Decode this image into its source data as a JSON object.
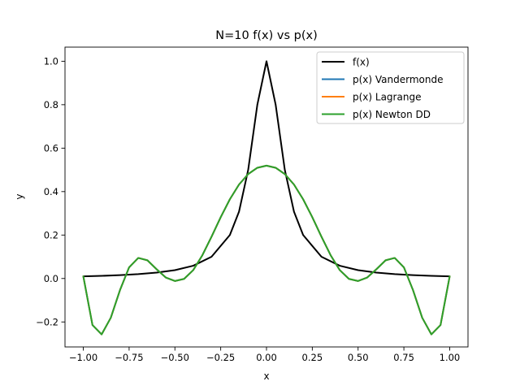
{
  "chart_data": {
    "type": "line",
    "title": "N=10 f(x) vs p(x)",
    "xlabel": "x",
    "ylabel": "y",
    "xlim": [
      -1.1,
      1.1
    ],
    "ylim": [
      -0.315,
      1.065
    ],
    "xticks": [
      -1.0,
      -0.75,
      -0.5,
      -0.25,
      0.0,
      0.25,
      0.5,
      0.75,
      1.0
    ],
    "xtick_labels": [
      "−1.00",
      "−0.75",
      "−0.50",
      "−0.25",
      "0.00",
      "0.25",
      "0.50",
      "0.75",
      "1.00"
    ],
    "yticks": [
      -0.2,
      0.0,
      0.2,
      0.4,
      0.6,
      0.8,
      1.0
    ],
    "ytick_labels": [
      "−0.2",
      "0.0",
      "0.2",
      "0.4",
      "0.6",
      "0.8",
      "1.0"
    ],
    "grid": false,
    "legend_position": "upper right",
    "series": [
      {
        "name": "f(x)",
        "color": "#000000",
        "x": [
          -1.0,
          -0.9,
          -0.8,
          -0.7,
          -0.6,
          -0.5,
          -0.4,
          -0.3,
          -0.2,
          -0.15,
          -0.1,
          -0.05,
          0.0,
          0.05,
          0.1,
          0.15,
          0.2,
          0.3,
          0.4,
          0.5,
          0.6,
          0.7,
          0.8,
          0.9,
          1.0
        ],
        "y": [
          0.0099,
          0.0122,
          0.0154,
          0.02,
          0.027,
          0.0385,
          0.0588,
          0.1,
          0.2,
          0.3077,
          0.5,
          0.8,
          1.0,
          0.8,
          0.5,
          0.3077,
          0.2,
          0.1,
          0.0588,
          0.0385,
          0.027,
          0.02,
          0.0154,
          0.0122,
          0.0099
        ]
      },
      {
        "name": "p(x) Vandermonde",
        "color": "#1f77b4",
        "x": [
          -1.0,
          -0.95,
          -0.9,
          -0.85,
          -0.8,
          -0.75,
          -0.7,
          -0.65,
          -0.6,
          -0.55,
          -0.5,
          -0.45,
          -0.4,
          -0.35,
          -0.3,
          -0.25,
          -0.2,
          -0.15,
          -0.1,
          -0.05,
          0.0,
          0.05,
          0.1,
          0.15,
          0.2,
          0.25,
          0.3,
          0.35,
          0.4,
          0.45,
          0.5,
          0.55,
          0.6,
          0.65,
          0.7,
          0.75,
          0.8,
          0.85,
          0.9,
          0.95,
          1.0
        ],
        "y": [
          0.0099,
          -0.2142,
          -0.2572,
          -0.1806,
          -0.0538,
          0.0513,
          0.0947,
          0.0837,
          0.0427,
          0.0046,
          -0.0115,
          -0.0017,
          0.0386,
          0.1072,
          0.1926,
          0.2822,
          0.3647,
          0.4324,
          0.4807,
          0.5097,
          0.5195,
          0.5097,
          0.4807,
          0.4324,
          0.3647,
          0.2822,
          0.1926,
          0.1072,
          0.0386,
          -0.0017,
          -0.0115,
          0.0046,
          0.0427,
          0.0837,
          0.0947,
          0.0513,
          -0.0538,
          -0.1806,
          -0.2572,
          -0.2142,
          0.0099
        ]
      },
      {
        "name": "p(x) Lagrange",
        "color": "#ff7f0e",
        "x": [
          -1.0,
          -0.95,
          -0.9,
          -0.85,
          -0.8,
          -0.75,
          -0.7,
          -0.65,
          -0.6,
          -0.55,
          -0.5,
          -0.45,
          -0.4,
          -0.35,
          -0.3,
          -0.25,
          -0.2,
          -0.15,
          -0.1,
          -0.05,
          0.0,
          0.05,
          0.1,
          0.15,
          0.2,
          0.25,
          0.3,
          0.35,
          0.4,
          0.45,
          0.5,
          0.55,
          0.6,
          0.65,
          0.7,
          0.75,
          0.8,
          0.85,
          0.9,
          0.95,
          1.0
        ],
        "y": [
          0.0099,
          -0.2142,
          -0.2572,
          -0.1806,
          -0.0538,
          0.0513,
          0.0947,
          0.0837,
          0.0427,
          0.0046,
          -0.0115,
          -0.0017,
          0.0386,
          0.1072,
          0.1926,
          0.2822,
          0.3647,
          0.4324,
          0.4807,
          0.5097,
          0.5195,
          0.5097,
          0.4807,
          0.4324,
          0.3647,
          0.2822,
          0.1926,
          0.1072,
          0.0386,
          -0.0017,
          -0.0115,
          0.0046,
          0.0427,
          0.0837,
          0.0947,
          0.0513,
          -0.0538,
          -0.1806,
          -0.2572,
          -0.2142,
          0.0099
        ]
      },
      {
        "name": "p(x) Newton DD",
        "color": "#2ca02c",
        "x": [
          -1.0,
          -0.95,
          -0.9,
          -0.85,
          -0.8,
          -0.75,
          -0.7,
          -0.65,
          -0.6,
          -0.55,
          -0.5,
          -0.45,
          -0.4,
          -0.35,
          -0.3,
          -0.25,
          -0.2,
          -0.15,
          -0.1,
          -0.05,
          0.0,
          0.05,
          0.1,
          0.15,
          0.2,
          0.25,
          0.3,
          0.35,
          0.4,
          0.45,
          0.5,
          0.55,
          0.6,
          0.65,
          0.7,
          0.75,
          0.8,
          0.85,
          0.9,
          0.95,
          1.0
        ],
        "y": [
          0.0099,
          -0.2142,
          -0.2572,
          -0.1806,
          -0.0538,
          0.0513,
          0.0947,
          0.0837,
          0.0427,
          0.0046,
          -0.0115,
          -0.0017,
          0.0386,
          0.1072,
          0.1926,
          0.2822,
          0.3647,
          0.4324,
          0.4807,
          0.5097,
          0.5195,
          0.5097,
          0.4807,
          0.4324,
          0.3647,
          0.2822,
          0.1926,
          0.1072,
          0.0386,
          -0.0017,
          -0.0115,
          0.0046,
          0.0427,
          0.0837,
          0.0947,
          0.0513,
          -0.0538,
          -0.1806,
          -0.2572,
          -0.2142,
          0.0099
        ]
      }
    ]
  }
}
